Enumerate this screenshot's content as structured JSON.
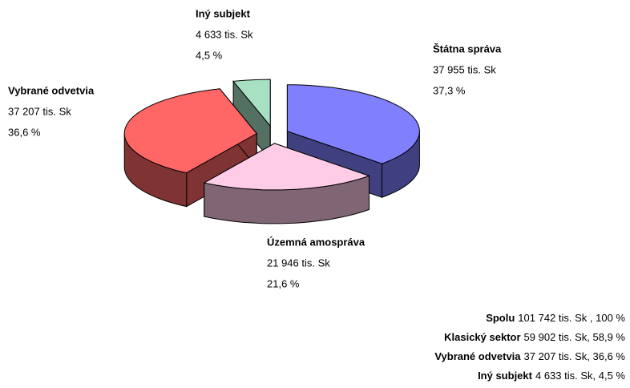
{
  "chart_data": {
    "type": "pie",
    "categories": [
      "Štátna správa",
      "Územná amospráva",
      "Vybrané odvetvia",
      "Iný subjekt"
    ],
    "values": [
      37.3,
      21.6,
      36.6,
      4.5
    ],
    "value_labels": [
      "37,3 %",
      "21,6 %",
      "36,6 %",
      "4,5 %"
    ],
    "amounts": [
      37955,
      21946,
      37207,
      4633
    ],
    "amount_labels": [
      "37 955 tis. Sk",
      "21 946 tis. Sk",
      "37 207 tis. Sk",
      "4 633 tis. Sk"
    ],
    "colors": [
      "#8080ff",
      "#ffcce8",
      "#ff6666",
      "#a8e0c4"
    ],
    "notes": [
      {
        "label": "Spolu",
        "text": "101 742 tis. Sk , 100 %"
      },
      {
        "label": "Klasický sektor",
        "text": "59 902 tis. Sk, 58,9 %"
      },
      {
        "label": "Vybrané odvetvia",
        "text": "37 207 tis. Sk, 36,6 %"
      },
      {
        "label": "Iný subjekt",
        "text": "4 633 tis. Sk, 4,5 %"
      }
    ]
  }
}
